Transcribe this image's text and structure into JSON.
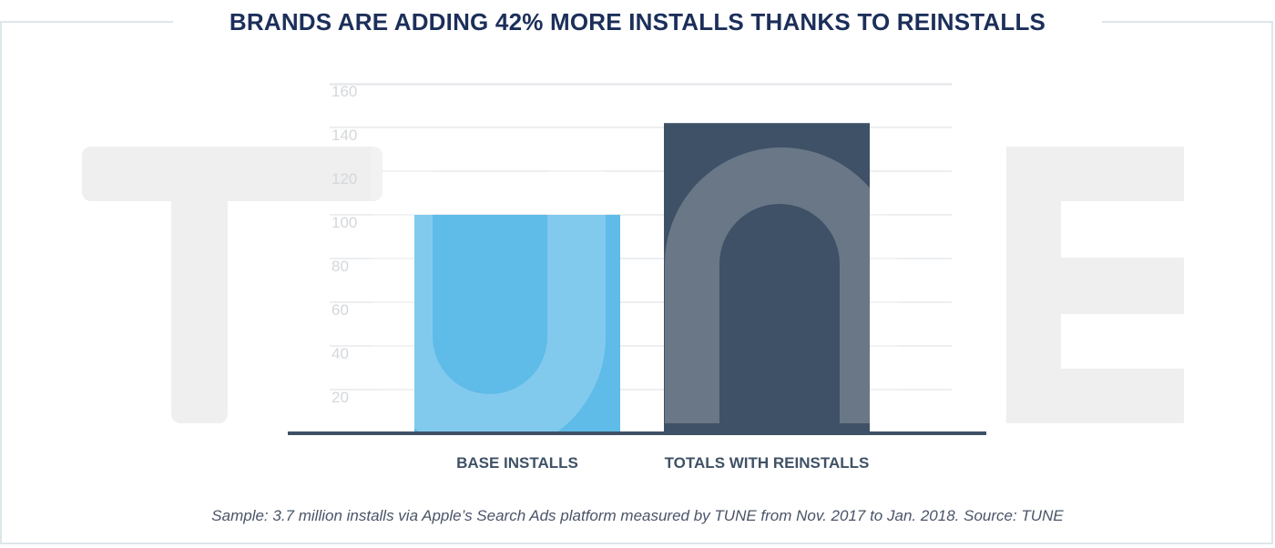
{
  "chart_data": {
    "type": "bar",
    "title": "BRANDS ARE ADDING 42% MORE INSTALLS THANKS TO REINSTALLS",
    "categories": [
      "BASE INSTALLS",
      "TOTALS WITH REINSTALLS"
    ],
    "values": [
      100,
      142
    ],
    "yticks": [
      20,
      40,
      60,
      80,
      100,
      120,
      140,
      160
    ],
    "ylim": [
      0,
      160
    ],
    "grid": true,
    "legend": "none",
    "colors": [
      "#5fbbe8",
      "#3f5166"
    ],
    "xlabel": "",
    "ylabel": ""
  },
  "watermark": {
    "text": "TUNE",
    "color": "#efefef"
  },
  "caption": "Sample: 3.7 million installs via Apple’s Search Ads platform measured by TUNE from Nov. 2017 to Jan. 2018. Source: TUNE",
  "colors": {
    "frame": "#dde6ea",
    "title": "#1c2f5a",
    "axis": "#3f5166",
    "grid": "#e6e9ec",
    "tick": "#d4d7da"
  }
}
